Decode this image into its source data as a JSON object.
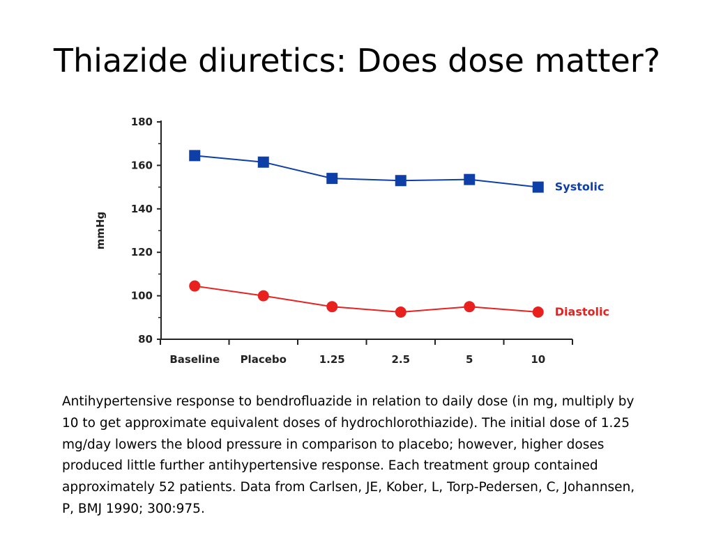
{
  "slide": {
    "title": "Thiazide diuretics: Does dose matter?",
    "caption": "Antihypertensive response to bendrofluazide in relation to daily dose (in mg, multiply by 10 to get approximate equivalent doses of hydrochlorothiazide). The initial dose of 1.25 mg/day lowers the blood pressure in comparison to placebo; however, higher doses produced little further antihypertensive response. Each treatment group contained approximately 52 patients. Data from Carlsen, JE, Kober, L, Torp-Pedersen, C, Johannsen, P, BMJ 1990; 300:975."
  },
  "chart_data": {
    "type": "line",
    "title": "",
    "xlabel": "",
    "ylabel": "mmHg",
    "categories": [
      "Baseline",
      "Placebo",
      "1.25",
      "2.5",
      "5",
      "10"
    ],
    "ylim": [
      80,
      180
    ],
    "yticks": [
      80,
      100,
      120,
      140,
      160,
      180
    ],
    "grid": false,
    "legend": "inline labels at right end of each series",
    "series": [
      {
        "name": "Systolic",
        "marker": "square",
        "color": "#0d3fa6",
        "values": [
          164.5,
          161.5,
          154,
          153,
          153.5,
          150
        ]
      },
      {
        "name": "Diastolic",
        "marker": "circle",
        "color": "#e8201e",
        "values": [
          104.5,
          100,
          95,
          92.5,
          95,
          92.5
        ]
      }
    ]
  }
}
